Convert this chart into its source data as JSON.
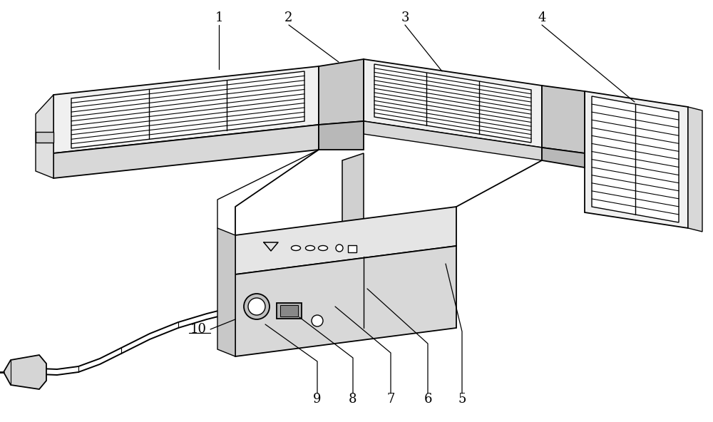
{
  "bg_color": "#ffffff",
  "line_color": "#000000",
  "fig_width": 10.0,
  "fig_height": 5.92,
  "font_size": 13
}
